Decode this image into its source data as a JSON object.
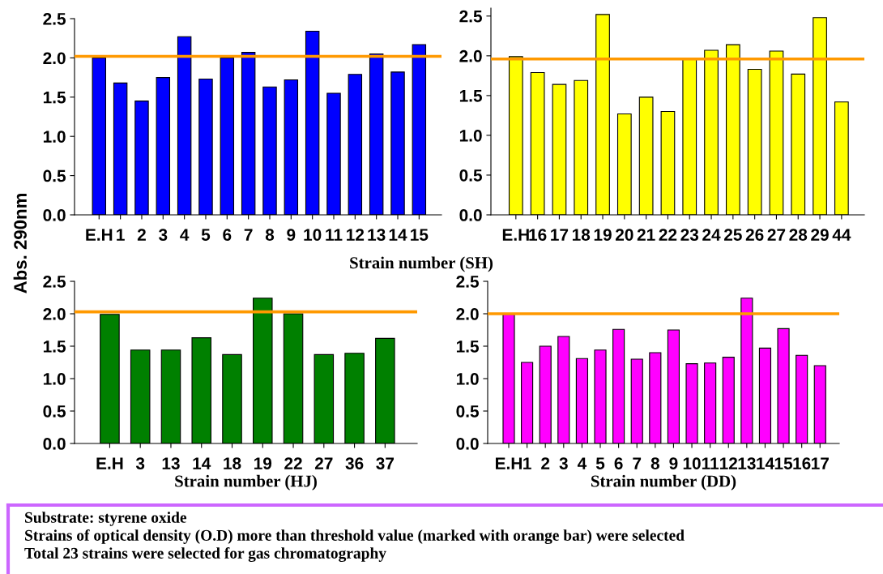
{
  "chart_data": [
    {
      "type": "bar",
      "ylabel": "Abs. 290nm",
      "xlabel": "Strain number (SH)",
      "categories": [
        "E.H",
        "1",
        "2",
        "3",
        "4",
        "5",
        "6",
        "7",
        "8",
        "9",
        "10",
        "11",
        "12",
        "13",
        "14",
        "15"
      ],
      "values": [
        2.0,
        1.68,
        1.45,
        1.75,
        2.27,
        1.73,
        2.0,
        2.07,
        1.63,
        1.72,
        2.34,
        1.55,
        1.79,
        2.05,
        1.82,
        2.17
      ],
      "color": "#0000ff",
      "ylim": [
        0,
        2.5
      ],
      "yticks": [
        {
          "value": 0,
          "label": "0.0"
        },
        0.5,
        {
          "value": 1,
          "label": "1.0"
        },
        1.5,
        {
          "value": 2,
          "label": "2.0"
        },
        2.5
      ],
      "ref_lines": [
        {
          "axis": "y",
          "value": 2.02,
          "color": "#ff9900"
        }
      ]
    },
    {
      "type": "bar",
      "categories": [
        "E.H",
        "16",
        "17",
        "18",
        "19",
        "20",
        "21",
        "22",
        "23",
        "24",
        "25",
        "26",
        "27",
        "28",
        "29",
        "44"
      ],
      "values": [
        1.99,
        1.79,
        1.64,
        1.69,
        2.52,
        1.27,
        1.48,
        1.3,
        1.97,
        2.07,
        2.14,
        1.83,
        2.06,
        1.77,
        2.48,
        1.42
      ],
      "color": "#ffff00",
      "ylim": [
        0,
        2.6
      ],
      "yticks": [
        {
          "value": 0,
          "label": "0.0"
        },
        0.5,
        {
          "value": 1,
          "label": "1.0"
        },
        1.5,
        {
          "value": 2,
          "label": "2.0"
        },
        2.5
      ],
      "ref_lines": [
        {
          "axis": "y",
          "value": 1.96,
          "color": "#ff9900"
        }
      ]
    },
    {
      "type": "bar",
      "xlabel": "Strain number (HJ)",
      "categories": [
        "E.H",
        "3",
        "13",
        "14",
        "18",
        "19",
        "22",
        "27",
        "36",
        "37"
      ],
      "values": [
        1.99,
        1.44,
        1.44,
        1.63,
        1.37,
        2.24,
        2.0,
        1.37,
        1.39,
        1.62
      ],
      "color": "#008000",
      "ylim": [
        0,
        2.5
      ],
      "yticks": [
        {
          "value": 0,
          "label": "0.0"
        },
        0.5,
        {
          "value": 1,
          "label": "1.0"
        },
        1.5,
        {
          "value": 2,
          "label": "2.0"
        },
        2.5
      ],
      "ref_lines": [
        {
          "axis": "y",
          "value": 2.03,
          "color": "#ff9900"
        }
      ]
    },
    {
      "type": "bar",
      "xlabel": "Strain number (DD)",
      "categories": [
        "E.H",
        "1",
        "2",
        "3",
        "4",
        "5",
        "6",
        "7",
        "8",
        "9",
        "10",
        "11",
        "12",
        "13",
        "14",
        "15",
        "16",
        "17"
      ],
      "values": [
        1.99,
        1.25,
        1.5,
        1.65,
        1.31,
        1.44,
        1.76,
        1.3,
        1.4,
        1.75,
        1.23,
        1.24,
        1.33,
        2.24,
        1.47,
        1.77,
        1.36,
        1.2
      ],
      "color": "#ff00ff",
      "ylim": [
        0,
        2.5
      ],
      "yticks": [
        {
          "value": 0,
          "label": "0.0"
        },
        0.5,
        {
          "value": 1,
          "label": "1.0"
        },
        1.5,
        {
          "value": 2,
          "label": "2.0"
        },
        2.5
      ],
      "ref_lines": [
        {
          "axis": "y",
          "value": 2.0,
          "color": "#ff9900"
        }
      ],
      "annotations": [
        "Substrate: styrene oxide",
        "Strains of optical density (O.D) more than threshold value (marked with orange bar) were selected",
        "Total 23 strains were selected for gas chromatography"
      ]
    }
  ]
}
